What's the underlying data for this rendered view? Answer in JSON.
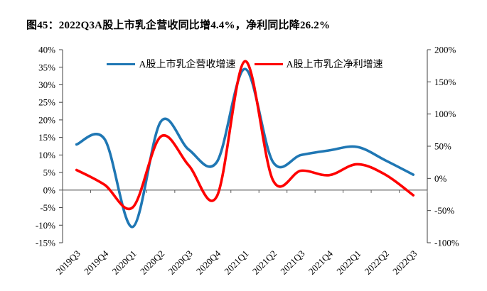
{
  "figure": {
    "title": "图45：2022Q3A股上市乳企营收同比增4.4%，净利同比降26.2%"
  },
  "chart_data": {
    "type": "line",
    "smooth": true,
    "grid": false,
    "legend_position": "top-center",
    "categories": [
      "2019Q3",
      "2019Q4",
      "2020Q1",
      "2020Q2",
      "2020Q3",
      "2020Q4",
      "2021Q1",
      "2021Q2",
      "2021Q3",
      "2021Q4",
      "2022Q1",
      "2022Q2",
      "2022Q3"
    ],
    "series": [
      {
        "name": "A股上市乳企营收增速",
        "axis": "left",
        "color": "#1F77B4",
        "values": [
          13,
          14.5,
          -10.5,
          19.5,
          11.5,
          8,
          34.5,
          8,
          10,
          11.3,
          12.3,
          8.5,
          4.4
        ]
      },
      {
        "name": "A股上市乳企净利增速",
        "axis": "right",
        "color": "#FE0000",
        "values": [
          13,
          -10,
          -45,
          65,
          20,
          -28,
          182,
          -3,
          12,
          5,
          22,
          6,
          -26.2
        ]
      }
    ],
    "left_axis": {
      "min": -15,
      "max": 40,
      "step": 5,
      "labels": [
        "40%",
        "35%",
        "30%",
        "25%",
        "20%",
        "15%",
        "10%",
        "5%",
        "0%",
        "-5%",
        "-10%",
        "-15%"
      ]
    },
    "right_axis": {
      "min": -100,
      "max": 200,
      "step": 50,
      "labels": [
        "200%",
        "150%",
        "100%",
        "50%",
        "0%",
        "-50%",
        "-100%"
      ]
    },
    "axis_color": "#404040",
    "zero_line_color": "#595959"
  }
}
